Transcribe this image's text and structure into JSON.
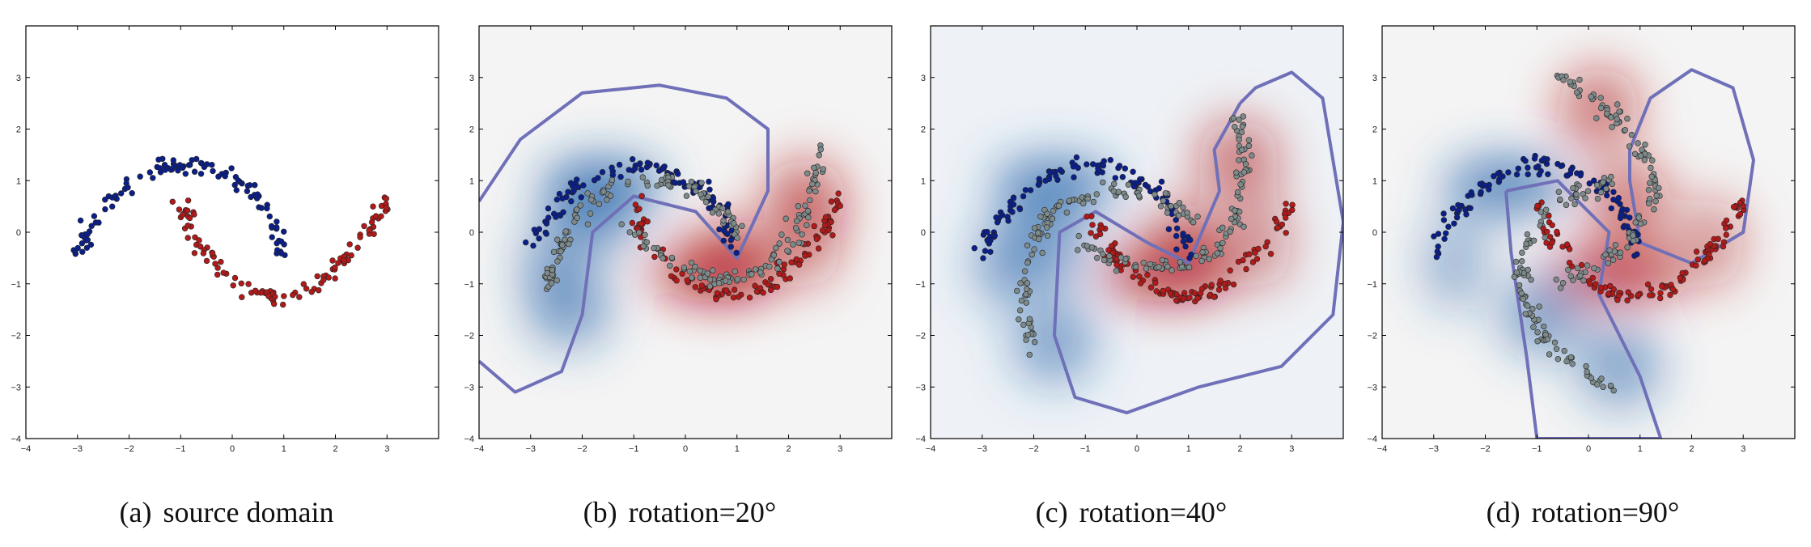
{
  "figure": {
    "colors": {
      "class_a": "#0b1f8a",
      "class_b": "#b21a1a",
      "target": "#7e8a8a",
      "boundary": "#6f70b8",
      "heat_blue": "#1f5fa8",
      "heat_red": "#b0141a"
    }
  },
  "chart_data": [
    {
      "type": "scatter",
      "caption_letter": "(a)",
      "caption_text": "source domain",
      "rotation_deg": 0,
      "xlim": [
        -4,
        4
      ],
      "ylim": [
        -4,
        4
      ],
      "xticks": [
        "−4",
        "−3",
        "−2",
        "−1",
        "0",
        "1",
        "2",
        "3"
      ],
      "yticks": [
        "−4",
        "−3",
        "−2",
        "−1",
        "0",
        "1",
        "2",
        "3"
      ],
      "heatmap": false,
      "boundary": false,
      "target_points": false,
      "series": [
        {
          "class": "a",
          "x": [
            -3.0,
            -2.7,
            -2.2,
            -1.7,
            -1.2,
            -0.7,
            -0.1,
            0.5,
            0.8,
            1.0
          ],
          "y": [
            -0.45,
            0.2,
            0.75,
            1.1,
            1.28,
            1.3,
            1.1,
            0.7,
            0.15,
            -0.45
          ]
        },
        {
          "class": "b",
          "x": [
            -1.0,
            -0.7,
            -0.2,
            0.4,
            1.0,
            1.6,
            2.2,
            2.7,
            3.0
          ],
          "y": [
            0.6,
            -0.1,
            -0.75,
            -1.15,
            -1.25,
            -1.05,
            -0.55,
            0.05,
            0.65
          ]
        }
      ]
    },
    {
      "type": "scatter",
      "caption_letter": "(b)",
      "caption_text": "rotation=20°",
      "rotation_deg": 20,
      "xlim": [
        -4,
        4
      ],
      "ylim": [
        -4,
        4
      ],
      "xticks": [
        "−4",
        "−3",
        "−2",
        "−1",
        "0",
        "1",
        "2",
        "3"
      ],
      "yticks": [
        "−4",
        "−3",
        "−2",
        "−1",
        "0",
        "1",
        "2",
        "3"
      ],
      "heatmap": true,
      "boundary": true,
      "target_points": true,
      "series": [
        {
          "class": "a",
          "x": [
            -3.0,
            -2.7,
            -2.2,
            -1.7,
            -1.2,
            -0.7,
            -0.1,
            0.5,
            0.8,
            1.0
          ],
          "y": [
            -0.45,
            0.2,
            0.75,
            1.1,
            1.28,
            1.3,
            1.1,
            0.7,
            0.15,
            -0.45
          ]
        },
        {
          "class": "b",
          "x": [
            -1.0,
            -0.7,
            -0.2,
            0.4,
            1.0,
            1.6,
            2.2,
            2.7,
            3.0
          ],
          "y": [
            0.6,
            -0.1,
            -0.75,
            -1.15,
            -1.25,
            -1.05,
            -0.55,
            0.05,
            0.65
          ]
        }
      ]
    },
    {
      "type": "scatter",
      "caption_letter": "(c)",
      "caption_text": "rotation=40°",
      "rotation_deg": 40,
      "xlim": [
        -4,
        4
      ],
      "ylim": [
        -4,
        4
      ],
      "xticks": [
        "−4",
        "−3",
        "−2",
        "−1",
        "0",
        "1",
        "2",
        "3"
      ],
      "yticks": [
        "−4",
        "−3",
        "−2",
        "−1",
        "0",
        "1",
        "2",
        "3"
      ],
      "heatmap": true,
      "boundary": true,
      "target_points": true,
      "series": [
        {
          "class": "a",
          "x": [
            -3.0,
            -2.7,
            -2.2,
            -1.7,
            -1.2,
            -0.7,
            -0.1,
            0.5,
            0.8,
            1.0
          ],
          "y": [
            -0.45,
            0.2,
            0.75,
            1.1,
            1.28,
            1.3,
            1.1,
            0.7,
            0.15,
            -0.45
          ]
        },
        {
          "class": "b",
          "x": [
            -1.0,
            -0.7,
            -0.2,
            0.4,
            1.0,
            1.6,
            2.2,
            2.7,
            3.0
          ],
          "y": [
            0.6,
            -0.1,
            -0.75,
            -1.15,
            -1.25,
            -1.05,
            -0.55,
            0.05,
            0.65
          ]
        }
      ]
    },
    {
      "type": "scatter",
      "caption_letter": "(d)",
      "caption_text": "rotation=90°",
      "rotation_deg": 90,
      "xlim": [
        -4,
        4
      ],
      "ylim": [
        -4,
        4
      ],
      "xticks": [
        "−4",
        "−3",
        "−2",
        "−1",
        "0",
        "1",
        "2",
        "3"
      ],
      "yticks": [
        "−4",
        "−3",
        "−2",
        "−1",
        "0",
        "1",
        "2",
        "3"
      ],
      "heatmap": true,
      "boundary": true,
      "target_points": true,
      "series": [
        {
          "class": "a",
          "x": [
            -3.0,
            -2.7,
            -2.2,
            -1.7,
            -1.2,
            -0.7,
            -0.1,
            0.5,
            0.8,
            1.0
          ],
          "y": [
            -0.45,
            0.2,
            0.75,
            1.1,
            1.28,
            1.3,
            1.1,
            0.7,
            0.15,
            -0.45
          ]
        },
        {
          "class": "b",
          "x": [
            -1.0,
            -0.7,
            -0.2,
            0.4,
            1.0,
            1.6,
            2.2,
            2.7,
            3.0
          ],
          "y": [
            0.6,
            -0.1,
            -0.75,
            -1.15,
            -1.25,
            -1.05,
            -0.55,
            0.05,
            0.65
          ]
        }
      ]
    }
  ]
}
